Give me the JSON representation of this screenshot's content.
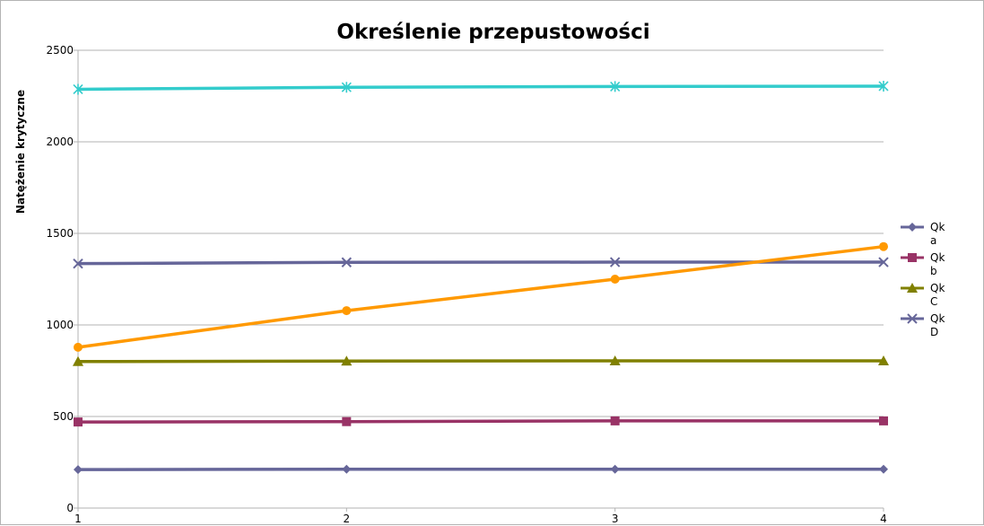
{
  "chart_data": {
    "type": "line",
    "title": "Określenie przepustowości",
    "xlabel": "",
    "ylabel": "Natężenie krytyczne",
    "x": [
      1,
      2,
      3,
      4
    ],
    "ylim": [
      0,
      2500
    ],
    "yticks": [
      0,
      500,
      1000,
      1500,
      2000,
      2500
    ],
    "grid": true,
    "legend_position": "right",
    "series": [
      {
        "name": "Qk a",
        "values": [
          210,
          212,
          212,
          212
        ],
        "color": "#666699",
        "marker": "diamond",
        "legend": true
      },
      {
        "name": "Qk b",
        "values": [
          470,
          472,
          476,
          476
        ],
        "color": "#993366",
        "marker": "square",
        "legend": true
      },
      {
        "name": "Qk C",
        "values": [
          800,
          803,
          804,
          804
        ],
        "color": "#808000",
        "marker": "triangle",
        "legend": true
      },
      {
        "name": "Qk D",
        "values": [
          1335,
          1342,
          1343,
          1343
        ],
        "color": "#666699",
        "marker": "x",
        "legend": true
      },
      {
        "values": [
          878,
          1078,
          1250,
          1428
        ],
        "color": "#ff9900",
        "marker": "circle",
        "legend": false
      },
      {
        "values": [
          2287,
          2298,
          2302,
          2304
        ],
        "color": "#33cccc",
        "marker": "star",
        "legend": false
      }
    ]
  }
}
